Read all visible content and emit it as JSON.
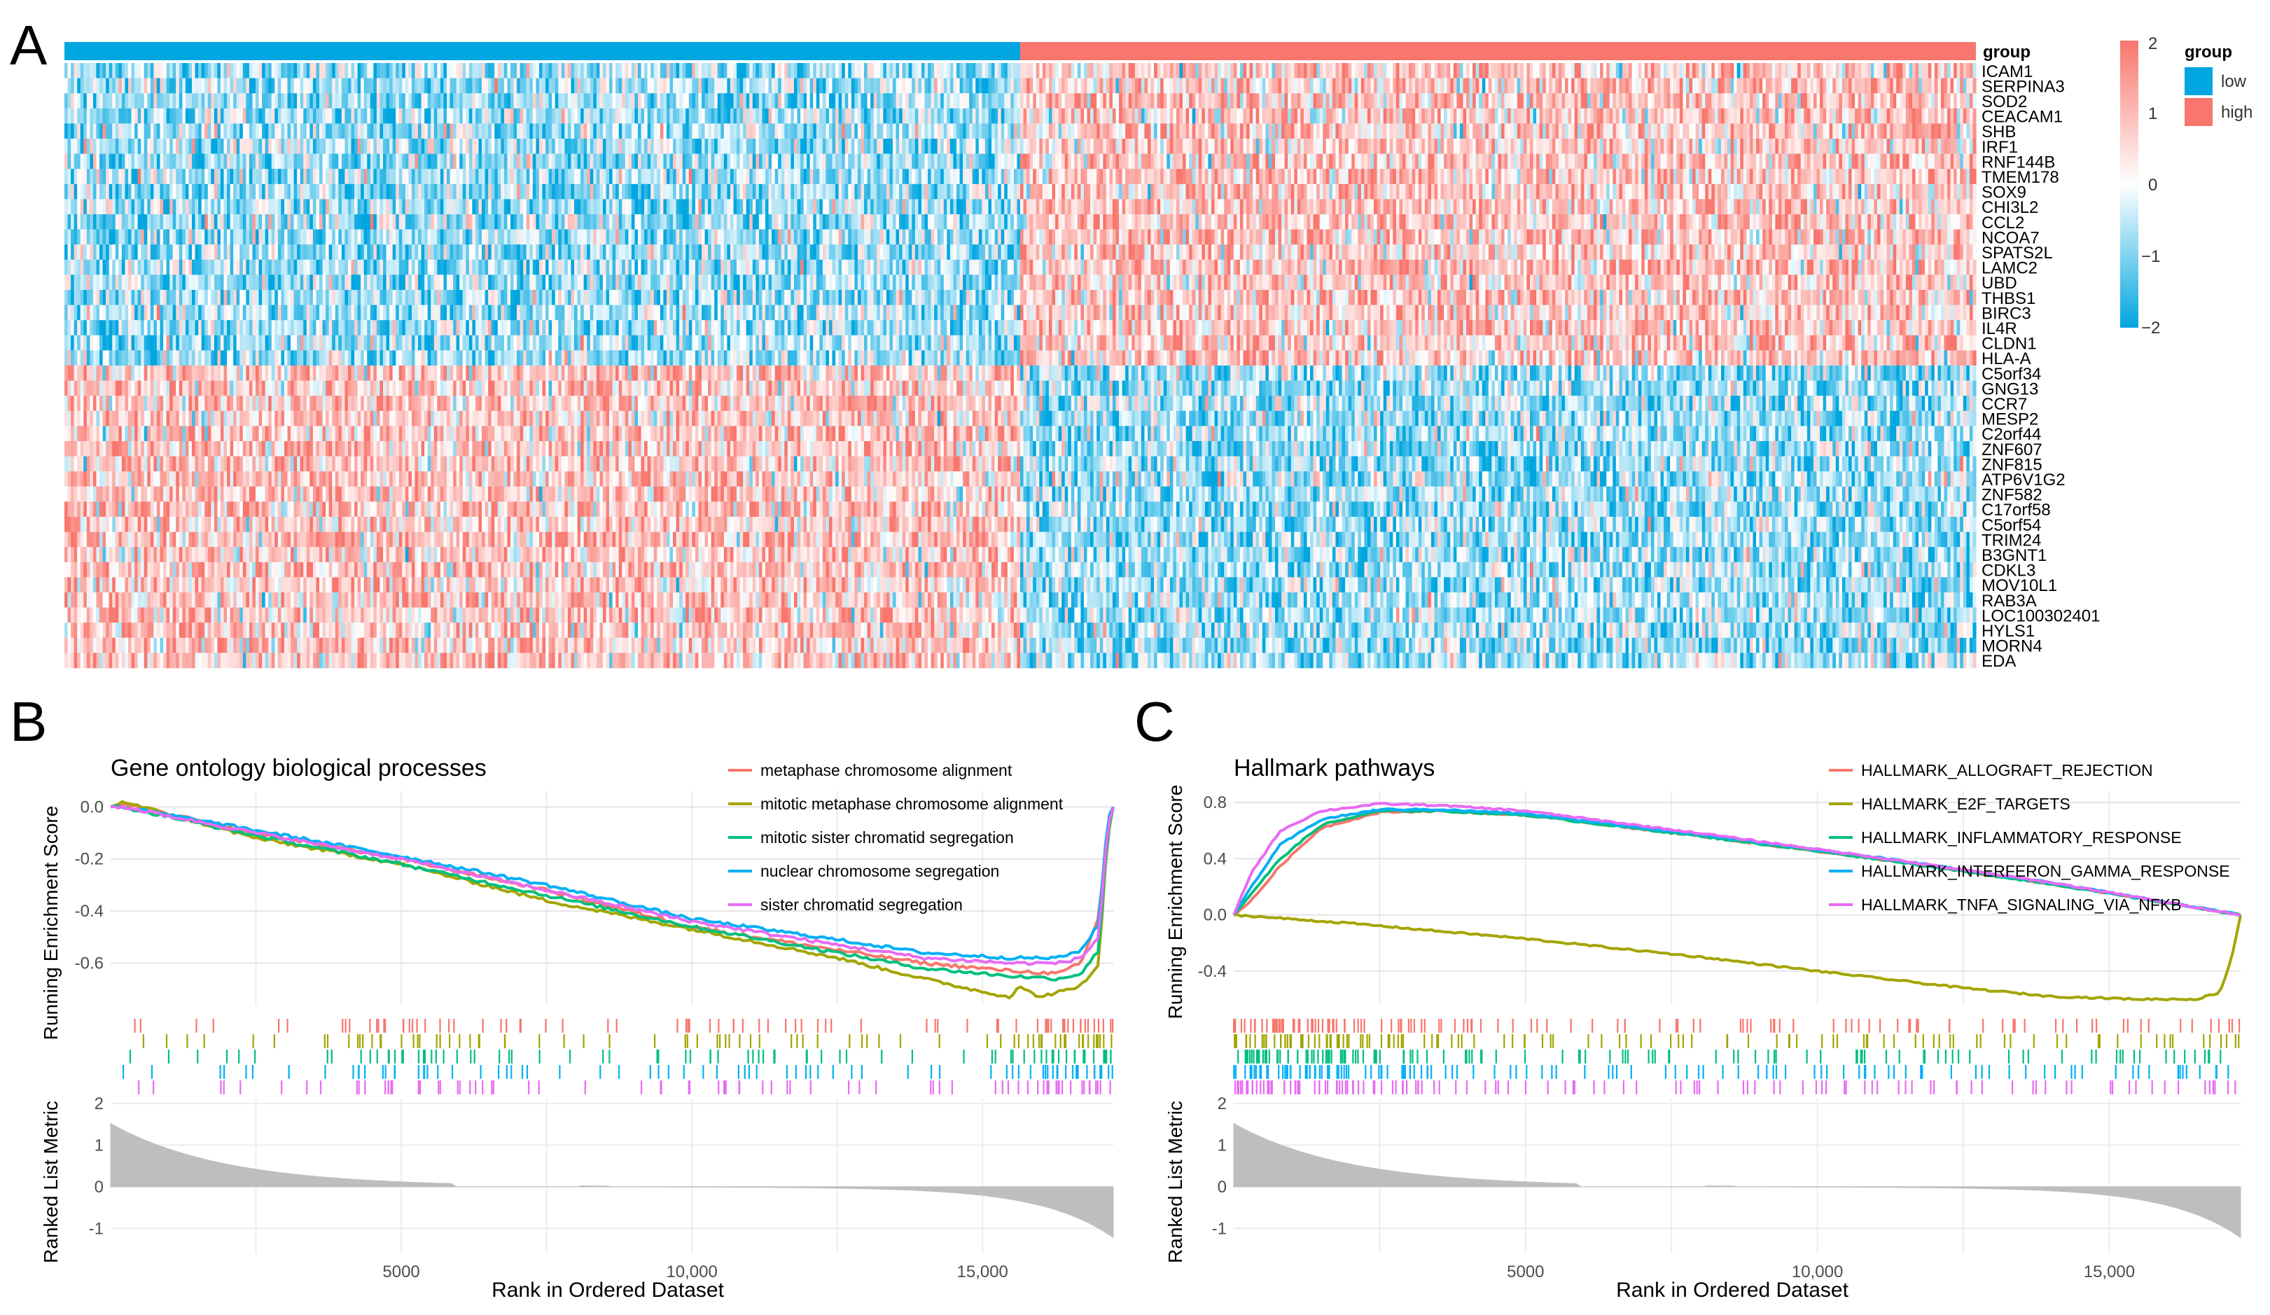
{
  "panel_labels": {
    "a": "A",
    "b": "B",
    "c": "C"
  },
  "colors": {
    "low": "#00A6E0",
    "high": "#F8766D",
    "scale_low": "#00A6E0",
    "scale_mid": "#FFFFFF",
    "scale_high": "#F8766D",
    "metric_fill": "#BEBEBE",
    "gsea_series": [
      "#F8766D",
      "#A3A500",
      "#00BF7D",
      "#00B0F6",
      "#E76BF3"
    ]
  },
  "chart_data": [
    {
      "type": "heatmap",
      "panel": "A",
      "annotation_label": "group",
      "groups": [
        "low",
        "high"
      ],
      "group_fraction_low": 0.5,
      "genes_up_in_high": [
        "ICAM1",
        "SERPINA3",
        "SOD2",
        "CEACAM1",
        "SHB",
        "IRF1",
        "RNF144B",
        "TMEM178",
        "SOX9",
        "CHI3L2",
        "CCL2",
        "NCOA7",
        "SPATS2L",
        "LAMC2",
        "UBD",
        "THBS1",
        "BIRC3",
        "IL4R",
        "CLDN1",
        "HLA-A"
      ],
      "genes_down_in_high": [
        "C5orf34",
        "GNG13",
        "CCR7",
        "MESP2",
        "C2orf44",
        "ZNF607",
        "ZNF815",
        "ATP6V1G2",
        "ZNF582",
        "C17orf58",
        "C5orf54",
        "TRIM24",
        "B3GNT1",
        "CDKL3",
        "MOV10L1",
        "RAB3A",
        "LOC100302401",
        "HYLS1",
        "MORN4",
        "EDA"
      ],
      "n_samples": 600,
      "scale": {
        "min": -2,
        "max": 2,
        "ticks": [
          "2",
          "1",
          "0",
          "−1",
          "−2"
        ]
      },
      "legend": {
        "title": "group",
        "items": [
          "low",
          "high"
        ]
      }
    },
    {
      "type": "line",
      "panel": "B",
      "title": "Gene ontology biological processes",
      "ylabel_top": "Running Enrichment Score",
      "ylabel_bottom": "Ranked List Metric",
      "xlabel": "Rank in Ordered Dataset",
      "xlim": [
        0,
        17250
      ],
      "es_ylim": [
        -0.76,
        0.06
      ],
      "es_ticks": [
        0.0,
        -0.2,
        -0.4,
        -0.6
      ],
      "es_tick_labels": [
        "0.0",
        "-0.2",
        "-0.4",
        "-0.6"
      ],
      "x_ticks": [
        5000,
        10000,
        15000
      ],
      "x_tick_labels": [
        "5000",
        "10,000",
        "15,000"
      ],
      "metric_ylim": [
        -1.6,
        2.1
      ],
      "metric_ticks": [
        2,
        1,
        0,
        -1
      ],
      "metric_tick_labels": [
        "2",
        "1",
        "0",
        "-1"
      ],
      "metric_gap": [
        5900,
        8100
      ],
      "series": [
        {
          "name": "metaphase chromosome alignment",
          "rank": [
            0,
            200,
            2500,
            5000,
            7500,
            10000,
            12500,
            14000,
            15500,
            16300,
            16700,
            17000,
            17150,
            17250
          ],
          "es": [
            0.0,
            0.01,
            -0.1,
            -0.2,
            -0.32,
            -0.46,
            -0.55,
            -0.6,
            -0.63,
            -0.64,
            -0.6,
            -0.42,
            -0.1,
            0.0
          ]
        },
        {
          "name": "mitotic metaphase chromosome alignment",
          "rank": [
            0,
            200,
            2500,
            5000,
            7500,
            10000,
            12500,
            14000,
            15000,
            15500,
            15600,
            16000,
            16300,
            16600,
            16800,
            17000,
            17150,
            17250
          ],
          "es": [
            0.0,
            0.02,
            -0.12,
            -0.22,
            -0.36,
            -0.47,
            -0.58,
            -0.66,
            -0.71,
            -0.73,
            -0.69,
            -0.73,
            -0.71,
            -0.7,
            -0.66,
            -0.6,
            -0.12,
            0.0
          ]
        },
        {
          "name": "mitotic sister chromatid segregation",
          "rank": [
            0,
            200,
            2500,
            5000,
            7500,
            10000,
            12500,
            14000,
            15500,
            16300,
            16700,
            17000,
            17150,
            17250
          ],
          "es": [
            0.0,
            0.0,
            -0.11,
            -0.22,
            -0.34,
            -0.46,
            -0.56,
            -0.62,
            -0.65,
            -0.66,
            -0.64,
            -0.55,
            -0.1,
            0.0
          ]
        },
        {
          "name": "nuclear chromosome segregation",
          "rank": [
            0,
            200,
            2500,
            5000,
            7500,
            10000,
            12500,
            14000,
            15500,
            16300,
            16700,
            17000,
            17150,
            17250
          ],
          "es": [
            0.0,
            0.0,
            -0.09,
            -0.19,
            -0.3,
            -0.43,
            -0.51,
            -0.56,
            -0.58,
            -0.58,
            -0.55,
            -0.45,
            -0.05,
            0.0
          ]
        },
        {
          "name": "sister chromatid segregation",
          "rank": [
            0,
            200,
            2500,
            5000,
            7500,
            10000,
            12500,
            14000,
            15500,
            16300,
            16700,
            17000,
            17150,
            17250
          ],
          "es": [
            0.0,
            0.0,
            -0.1,
            -0.2,
            -0.32,
            -0.44,
            -0.53,
            -0.58,
            -0.6,
            -0.6,
            -0.58,
            -0.5,
            -0.08,
            0.0
          ]
        }
      ],
      "hit_density": [
        0.05,
        0.05,
        0.04,
        0.06,
        0.2,
        0.18,
        0.12,
        0.06,
        0.05,
        0.1,
        0.14,
        0.12,
        0.08,
        0.06,
        0.05,
        0.22,
        0.35
      ]
    },
    {
      "type": "line",
      "panel": "C",
      "title": "Hallmark pathways",
      "ylabel_top": "Running Enrichment Score",
      "ylabel_bottom": "Ranked List Metric",
      "xlabel": "Rank in Ordered Dataset",
      "xlim": [
        0,
        17250
      ],
      "es_ylim": [
        -0.64,
        0.88
      ],
      "es_ticks": [
        0.8,
        0.4,
        0.0,
        -0.4
      ],
      "es_tick_labels": [
        "0.8",
        "0.4",
        "0.0",
        "-0.4"
      ],
      "x_ticks": [
        5000,
        10000,
        15000
      ],
      "x_tick_labels": [
        "5000",
        "10,000",
        "15,000"
      ],
      "metric_ylim": [
        -1.6,
        2.1
      ],
      "metric_ticks": [
        2,
        1,
        0,
        -1
      ],
      "metric_tick_labels": [
        "2",
        "1",
        "0",
        "-1"
      ],
      "metric_gap": [
        5900,
        8100
      ],
      "series": [
        {
          "name": "HALLMARK_ALLOGRAFT_REJECTION",
          "rank": [
            0,
            300,
            800,
            1500,
            2500,
            3500,
            5000,
            8000,
            11000,
            14000,
            17250
          ],
          "es": [
            0.0,
            0.1,
            0.35,
            0.62,
            0.73,
            0.74,
            0.71,
            0.56,
            0.4,
            0.22,
            0.0
          ]
        },
        {
          "name": "HALLMARK_E2F_TARGETS",
          "rank": [
            0,
            2000,
            5000,
            8000,
            10000,
            12500,
            14000,
            15500,
            16500,
            16900,
            17100,
            17250
          ],
          "es": [
            0.0,
            -0.06,
            -0.17,
            -0.3,
            -0.4,
            -0.52,
            -0.58,
            -0.6,
            -0.6,
            -0.55,
            -0.3,
            0.0
          ]
        },
        {
          "name": "HALLMARK_INFLAMMATORY_RESPONSE",
          "rank": [
            0,
            300,
            800,
            1500,
            2500,
            3500,
            5000,
            8000,
            11000,
            14000,
            17250
          ],
          "es": [
            0.0,
            0.15,
            0.4,
            0.64,
            0.74,
            0.74,
            0.71,
            0.56,
            0.4,
            0.22,
            0.0
          ]
        },
        {
          "name": "HALLMARK_INTERFERON_GAMMA_RESPONSE",
          "rank": [
            0,
            300,
            800,
            1500,
            2500,
            3500,
            5000,
            8000,
            11000,
            14000,
            17250
          ],
          "es": [
            0.0,
            0.2,
            0.5,
            0.68,
            0.75,
            0.75,
            0.72,
            0.57,
            0.41,
            0.23,
            0.0
          ]
        },
        {
          "name": "HALLMARK_TNFA_SIGNALING_VIA_NFKB",
          "rank": [
            0,
            300,
            800,
            1500,
            2500,
            3500,
            5000,
            8000,
            11000,
            14000,
            17250
          ],
          "es": [
            0.0,
            0.3,
            0.6,
            0.74,
            0.79,
            0.78,
            0.74,
            0.58,
            0.41,
            0.23,
            0.0
          ]
        }
      ],
      "hit_density": [
        0.5,
        0.45,
        0.3,
        0.2,
        0.12,
        0.1,
        0.1,
        0.12,
        0.1,
        0.12,
        0.15,
        0.12,
        0.1,
        0.1,
        0.1,
        0.12,
        0.15
      ]
    }
  ]
}
